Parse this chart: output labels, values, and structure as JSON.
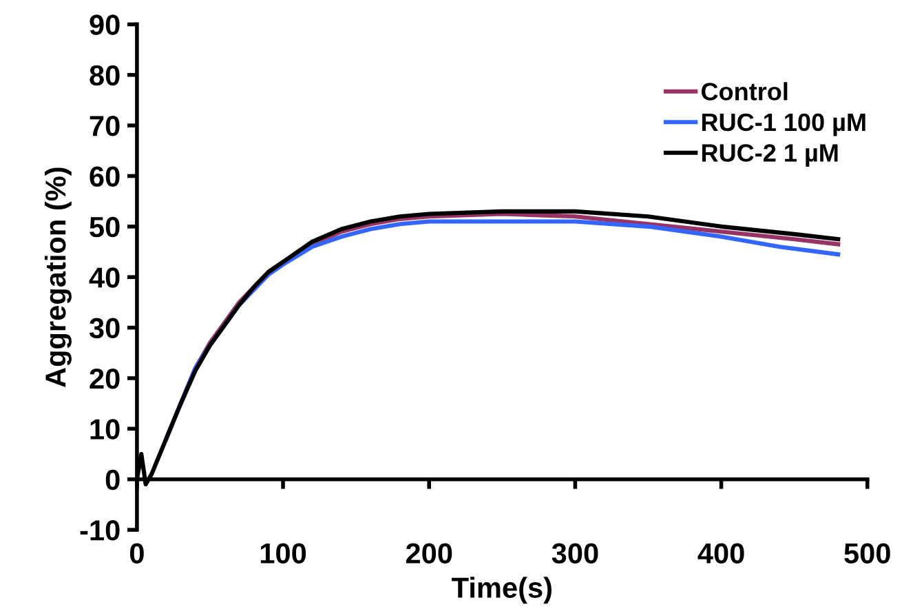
{
  "chart_data": {
    "type": "line",
    "xlabel": "Time(s)",
    "ylabel": "Aggregation (%)",
    "xlim": [
      0,
      500
    ],
    "ylim": [
      -10,
      90
    ],
    "xticks": [
      0,
      100,
      200,
      300,
      400,
      500
    ],
    "yticks": [
      -10,
      0,
      10,
      20,
      30,
      40,
      50,
      60,
      70,
      80,
      90
    ],
    "grid": false,
    "legend": "top right",
    "marker": "none",
    "line_style": "solid",
    "series": [
      {
        "name": "Control",
        "color": "#993366",
        "x": [
          30,
          40,
          50,
          60,
          70,
          80,
          90,
          100,
          120,
          140,
          160,
          180,
          200,
          250,
          300,
          350,
          400,
          450,
          480
        ],
        "values": [
          15,
          22,
          27,
          31,
          35,
          38,
          41,
          43,
          46.5,
          49,
          50.5,
          51.5,
          52,
          52.5,
          52,
          50.5,
          49,
          47.5,
          46.5
        ]
      },
      {
        "name": "RUC-1 100 µM",
        "color": "#3366ff",
        "x": [
          20,
          30,
          40,
          50,
          60,
          70,
          80,
          90,
          100,
          120,
          140,
          160,
          180,
          200,
          250,
          300,
          350,
          400,
          440,
          480
        ],
        "values": [
          8,
          15,
          22,
          26.5,
          30.5,
          34.5,
          37.5,
          40.5,
          42.5,
          46,
          48,
          49.5,
          50.5,
          51,
          51,
          51,
          50,
          48,
          46,
          44.5
        ]
      },
      {
        "name": "RUC-2 1 µM",
        "color": "#000000",
        "x": [
          0,
          3,
          6,
          10,
          20,
          30,
          40,
          50,
          60,
          70,
          80,
          90,
          100,
          120,
          140,
          160,
          180,
          200,
          250,
          300,
          350,
          400,
          450,
          480
        ],
        "values": [
          0,
          5,
          -1,
          1,
          8,
          15,
          21.5,
          26.5,
          30.5,
          34.5,
          38,
          41,
          43,
          47,
          49.5,
          51,
          52,
          52.5,
          53,
          53,
          52,
          50,
          48.5,
          47.5
        ]
      }
    ]
  }
}
